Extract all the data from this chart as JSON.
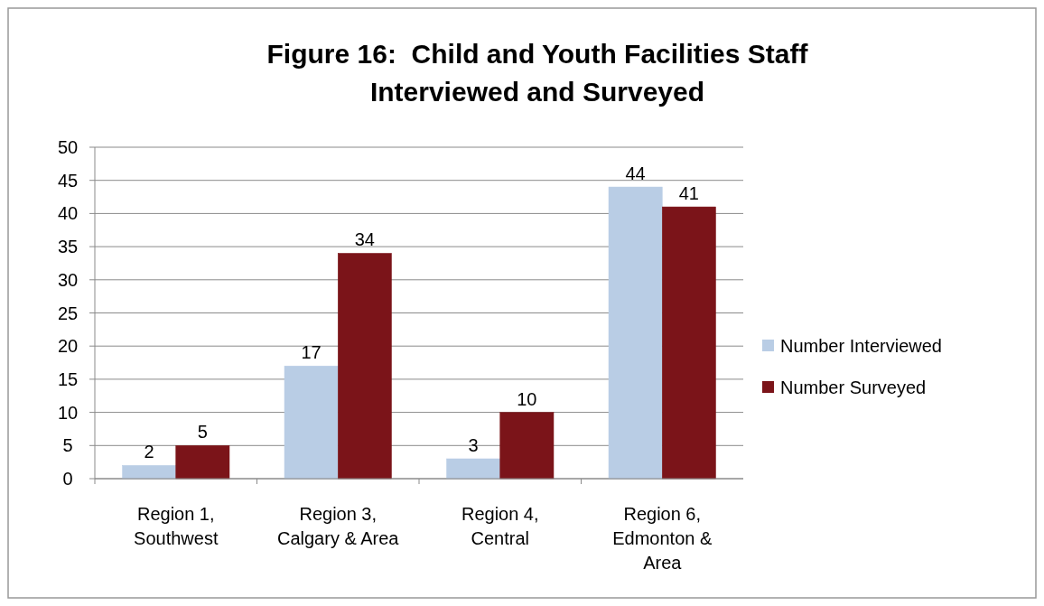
{
  "chart_data": {
    "type": "bar",
    "title": "Figure 16:  Child and Youth Facilities Staff Interviewed and Surveyed",
    "categories": [
      "Region 1, Southwest",
      "Region 3, Calgary & Area",
      "Region 4, Central",
      "Region 6, Edmonton & Area"
    ],
    "series": [
      {
        "name": "Number Interviewed",
        "color": "#b9cde5",
        "values": [
          2,
          17,
          3,
          44
        ]
      },
      {
        "name": "Number Surveyed",
        "color": "#7b1419",
        "values": [
          5,
          34,
          10,
          41
        ]
      }
    ],
    "ylim": [
      0,
      50
    ],
    "yticks": [
      0,
      5,
      10,
      15,
      20,
      25,
      30,
      35,
      40,
      45,
      50
    ],
    "grid": "y",
    "legend": "right",
    "data_labels": true
  }
}
